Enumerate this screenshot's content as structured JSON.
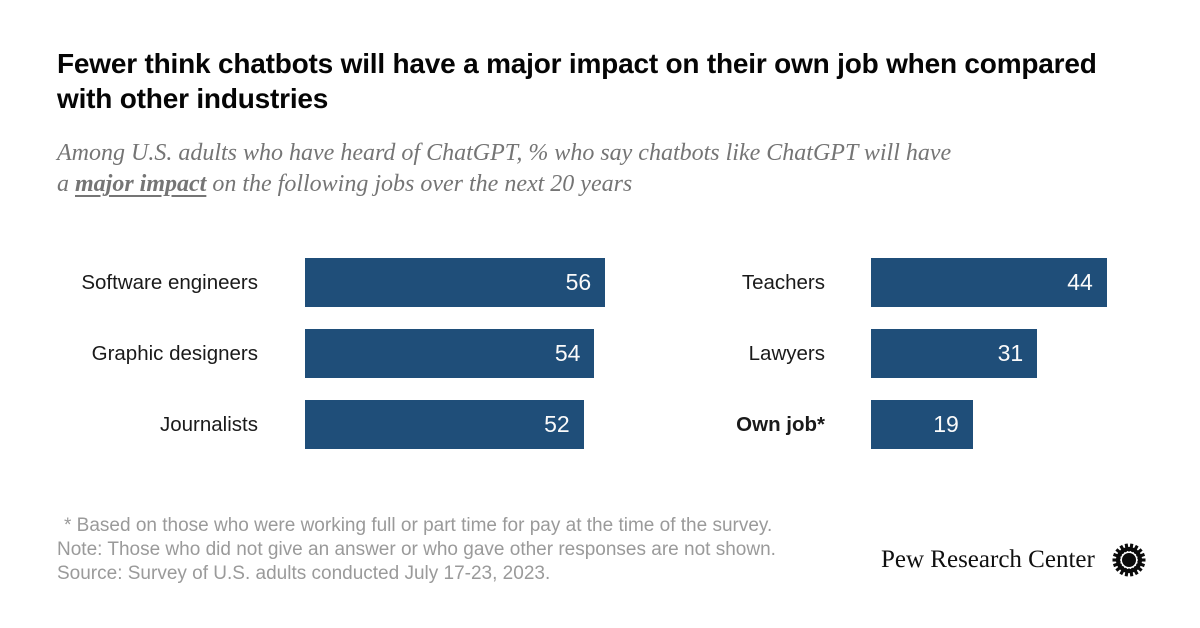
{
  "header": {
    "title": "Fewer think chatbots will have a major impact on their own job when compared with other industries",
    "subtitle": {
      "line1": "Among U.S. adults who have heard of ChatGPT, % who say chatbots like ChatGPT will have",
      "line2_prefix": "a ",
      "emphasis": "major impact",
      "line2_suffix": " on the following jobs over the next 20 years"
    }
  },
  "chart_data": {
    "type": "bar",
    "orientation": "horizontal",
    "unit": "percent",
    "xlim": [
      0,
      60
    ],
    "bar_color": "#1F4E79",
    "value_label_color": "#FAFAFA",
    "value_labels_inside_bars": true,
    "columns": [
      {
        "categories": [
          "Software engineers",
          "Graphic designers",
          "Journalists"
        ],
        "values": [
          56,
          54,
          52
        ]
      },
      {
        "categories": [
          "Teachers",
          "Lawyers",
          "Own job*"
        ],
        "values": [
          44,
          31,
          19
        ]
      }
    ]
  },
  "footer": {
    "footnote": "* Based on those who were working full or part time for pay at the time of the survey.",
    "note": "Note: Those who did not give an answer or who gave other responses are not shown.",
    "source": "Source: Survey of U.S. adults conducted July 17-23, 2023.",
    "brand": "Pew Research Center"
  }
}
